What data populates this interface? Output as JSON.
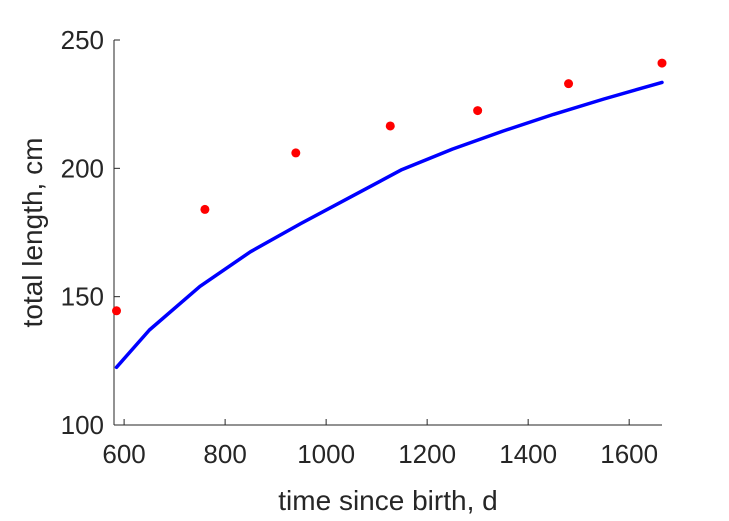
{
  "chart_data": {
    "type": "scatter",
    "xlabel": "time since birth, d",
    "ylabel": "total length, cm",
    "xlim": [
      580,
      1665
    ],
    "ylim": [
      100,
      250
    ],
    "xticks": [
      600,
      800,
      1000,
      1200,
      1400,
      1600
    ],
    "yticks": [
      100,
      150,
      200,
      250
    ],
    "grid": false,
    "series": [
      {
        "kind": "points",
        "color": "#ff0000",
        "points": [
          {
            "x": 585,
            "y": 144.5
          },
          {
            "x": 760,
            "y": 184
          },
          {
            "x": 940,
            "y": 206
          },
          {
            "x": 1127,
            "y": 216.5
          },
          {
            "x": 1300,
            "y": 222.5
          },
          {
            "x": 1480,
            "y": 233
          },
          {
            "x": 1665,
            "y": 241
          }
        ]
      },
      {
        "kind": "line",
        "color": "#0000ff",
        "points": [
          {
            "x": 585,
            "y": 122.5
          },
          {
            "x": 650,
            "y": 137
          },
          {
            "x": 750,
            "y": 154
          },
          {
            "x": 850,
            "y": 167.5
          },
          {
            "x": 950,
            "y": 178.5
          },
          {
            "x": 1050,
            "y": 189
          },
          {
            "x": 1150,
            "y": 199.5
          },
          {
            "x": 1250,
            "y": 207.5
          },
          {
            "x": 1350,
            "y": 214.5
          },
          {
            "x": 1450,
            "y": 221
          },
          {
            "x": 1550,
            "y": 227
          },
          {
            "x": 1665,
            "y": 233.5
          }
        ]
      }
    ]
  }
}
